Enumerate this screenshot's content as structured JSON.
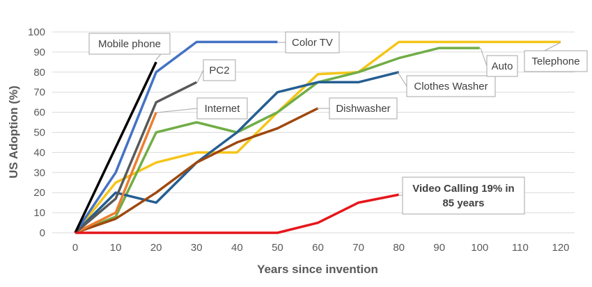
{
  "chart_data": {
    "type": "line",
    "title": "",
    "xlabel": "Years since invention",
    "ylabel": "US Adoption (%)",
    "xlim": [
      0,
      120
    ],
    "ylim": [
      0,
      100
    ],
    "x_ticks": [
      0,
      10,
      20,
      30,
      40,
      50,
      60,
      70,
      80,
      90,
      100,
      110,
      120
    ],
    "y_ticks": [
      0,
      10,
      20,
      30,
      40,
      50,
      60,
      70,
      80,
      90,
      100
    ],
    "grid": true,
    "legend": "none (series labeled with callouts)",
    "series": [
      {
        "name": "Telephone",
        "color": "#f5c518",
        "x": [
          0,
          10,
          20,
          30,
          40,
          50,
          60,
          70,
          80,
          90,
          100,
          110,
          120
        ],
        "y": [
          0,
          25,
          35,
          40,
          40,
          60,
          79,
          80,
          95,
          95,
          95,
          95,
          95
        ]
      },
      {
        "name": "Auto",
        "color": "#70ad47",
        "x": [
          0,
          10,
          20,
          30,
          40,
          50,
          60,
          70,
          80,
          90,
          100
        ],
        "y": [
          0,
          8,
          50,
          55,
          50,
          60,
          75,
          80,
          87,
          92,
          92
        ]
      },
      {
        "name": "Clothes Washer",
        "color": "#255e91",
        "x": [
          0,
          10,
          20,
          30,
          40,
          50,
          60,
          70,
          80
        ],
        "y": [
          0,
          20,
          15,
          35,
          50,
          70,
          75,
          75,
          80
        ]
      },
      {
        "name": "Dishwasher",
        "color": "#9e480e",
        "x": [
          0,
          10,
          20,
          30,
          40,
          50,
          60
        ],
        "y": [
          0,
          7,
          20,
          35,
          45,
          52,
          62
        ]
      },
      {
        "name": "Color TV",
        "color": "#4472c4",
        "x": [
          0,
          10,
          20,
          30,
          40,
          50
        ],
        "y": [
          0,
          30,
          80,
          95,
          95,
          95
        ]
      },
      {
        "name": "Internet",
        "color": "#ed7d31",
        "x": [
          0,
          10,
          20
        ],
        "y": [
          0,
          10,
          60
        ]
      },
      {
        "name": "PC2",
        "color": "#595959",
        "x": [
          0,
          10,
          20,
          30
        ],
        "y": [
          0,
          17,
          65,
          75
        ]
      },
      {
        "name": "Mobile phone",
        "color": "#000000",
        "x": [
          0,
          20
        ],
        "y": [
          0,
          85
        ]
      },
      {
        "name": "Video Calling 19% in 85 years",
        "color": "#e6161b",
        "x": [
          0,
          10,
          20,
          30,
          40,
          50,
          60,
          70,
          80
        ],
        "y": [
          0,
          0,
          0,
          0,
          0,
          0,
          5,
          15,
          19
        ]
      }
    ],
    "callouts": [
      {
        "id": "mobile",
        "lines": [
          "Mobile phone"
        ],
        "bold": false,
        "anchor": [
          20,
          85
        ]
      },
      {
        "id": "colortv",
        "lines": [
          "Color TV"
        ],
        "bold": false,
        "anchor": [
          50,
          95
        ]
      },
      {
        "id": "pc2",
        "lines": [
          "PC2"
        ],
        "bold": false,
        "anchor": [
          30,
          75
        ]
      },
      {
        "id": "internet",
        "lines": [
          "Internet"
        ],
        "bold": false,
        "anchor": [
          20,
          60
        ]
      },
      {
        "id": "dishwasher",
        "lines": [
          "Dishwasher"
        ],
        "bold": false,
        "anchor": [
          60,
          62
        ]
      },
      {
        "id": "washer",
        "lines": [
          "Clothes Washer"
        ],
        "bold": false,
        "anchor": [
          80,
          80
        ]
      },
      {
        "id": "auto",
        "lines": [
          "Auto"
        ],
        "bold": false,
        "anchor": [
          100,
          92
        ]
      },
      {
        "id": "telephone",
        "lines": [
          "Telephone"
        ],
        "bold": false,
        "anchor": [
          120,
          95
        ]
      },
      {
        "id": "video",
        "lines": [
          "Video Calling 19% in",
          "85 years"
        ],
        "bold": true,
        "anchor": [
          80,
          19
        ]
      }
    ]
  }
}
